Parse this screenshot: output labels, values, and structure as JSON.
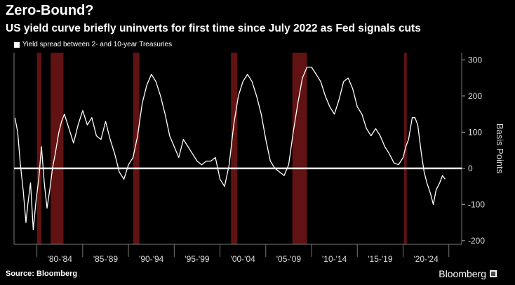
{
  "header": {
    "title": "Zero-Bound?",
    "subtitle": "US yield curve briefly uninverts for first time since July 2022 as Fed signals cuts"
  },
  "footer": {
    "source": "Source: Bloomberg",
    "brand": "Bloomberg"
  },
  "colors": {
    "background": "#000000",
    "line": "#ffffff",
    "recession": "#6b1414",
    "marker": "#e8222b"
  },
  "chart_data": {
    "type": "line",
    "title": "Zero-Bound?",
    "subtitle": "US yield curve briefly uninverts for first time since July 2022 as Fed signals cuts",
    "ylabel": "Basis Points",
    "xlim": [
      1977.5,
      2026.4
    ],
    "ylim": [
      -210,
      320
    ],
    "yticks": [
      300,
      200,
      100,
      0,
      -100,
      -200
    ],
    "zero_line": true,
    "legend": [
      "Yield spread between 2- and 10-year Treasuries"
    ],
    "legend_position": "top-left",
    "grid": false,
    "xtick_labels": [
      {
        "label": "'80-'84",
        "center": 1982.5
      },
      {
        "label": "'85-'89",
        "center": 1987.5
      },
      {
        "label": "'90-'94",
        "center": 1992.5
      },
      {
        "label": "'95-'99",
        "center": 1997.5
      },
      {
        "label": "'00-'04",
        "center": 2002.5
      },
      {
        "label": "'05-'09",
        "center": 2007.5
      },
      {
        "label": "'10-'14",
        "center": 2012.5
      },
      {
        "label": "'15-'19",
        "center": 2017.5
      },
      {
        "label": "'20-'24",
        "center": 2022.5
      }
    ],
    "recessions": [
      [
        1980.0,
        1980.5
      ],
      [
        1981.5,
        1982.9
      ],
      [
        1990.5,
        1991.2
      ],
      [
        2001.2,
        2001.9
      ],
      [
        2007.9,
        2009.5
      ],
      [
        2020.1,
        2020.4
      ]
    ],
    "series": [
      {
        "name": "Yield spread between 2- and 10-year Treasuries",
        "x": [
          1977.6,
          1977.9,
          1978.2,
          1978.5,
          1978.8,
          1979.0,
          1979.3,
          1979.6,
          1979.9,
          1980.2,
          1980.5,
          1980.8,
          1981.1,
          1981.4,
          1981.7,
          1982.0,
          1982.4,
          1982.7,
          1983.0,
          1983.5,
          1984.0,
          1984.5,
          1985.0,
          1985.5,
          1986.0,
          1986.5,
          1987.0,
          1987.5,
          1988.0,
          1988.5,
          1989.0,
          1989.5,
          1990.0,
          1990.5,
          1991.0,
          1991.5,
          1992.0,
          1992.5,
          1993.0,
          1993.5,
          1994.0,
          1994.5,
          1995.0,
          1995.5,
          1996.0,
          1996.5,
          1997.0,
          1997.5,
          1998.0,
          1998.5,
          1999.0,
          1999.5,
          2000.0,
          2000.5,
          2001.0,
          2001.5,
          2002.0,
          2002.5,
          2003.0,
          2003.5,
          2004.0,
          2004.5,
          2005.0,
          2005.5,
          2006.0,
          2006.5,
          2007.0,
          2007.5,
          2008.0,
          2008.5,
          2009.0,
          2009.5,
          2010.0,
          2010.5,
          2011.0,
          2011.5,
          2012.0,
          2012.5,
          2013.0,
          2013.5,
          2014.0,
          2014.5,
          2015.0,
          2015.5,
          2016.0,
          2016.5,
          2017.0,
          2017.5,
          2018.0,
          2018.5,
          2019.0,
          2019.5,
          2020.0,
          2020.3,
          2020.6,
          2021.0,
          2021.3,
          2021.6,
          2022.0,
          2022.3,
          2022.6,
          2023.0,
          2023.3,
          2023.6,
          2024.0,
          2024.3,
          2024.6
        ],
        "values": [
          140,
          100,
          10,
          -60,
          -150,
          -100,
          -40,
          -170,
          -90,
          -30,
          60,
          -40,
          -110,
          -60,
          0,
          40,
          100,
          130,
          150,
          110,
          70,
          120,
          160,
          120,
          140,
          90,
          80,
          130,
          80,
          40,
          -10,
          -30,
          10,
          30,
          90,
          180,
          230,
          260,
          240,
          200,
          150,
          90,
          60,
          30,
          80,
          60,
          40,
          20,
          10,
          20,
          20,
          30,
          -30,
          -50,
          10,
          120,
          200,
          240,
          260,
          240,
          200,
          150,
          80,
          20,
          0,
          -10,
          -20,
          10,
          100,
          180,
          250,
          280,
          280,
          260,
          240,
          200,
          170,
          150,
          190,
          240,
          250,
          220,
          170,
          150,
          110,
          90,
          110,
          90,
          60,
          40,
          15,
          10,
          30,
          60,
          80,
          140,
          140,
          120,
          40,
          -10,
          -40,
          -70,
          -100,
          -60,
          -40,
          -20,
          -30
        ]
      }
    ]
  }
}
